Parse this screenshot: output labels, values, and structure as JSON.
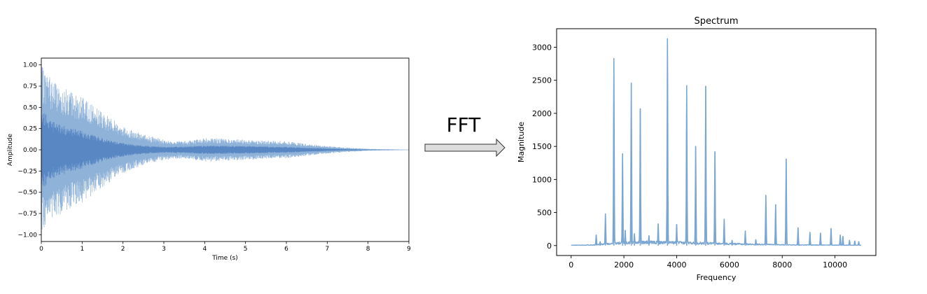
{
  "chart_data": [
    {
      "type": "line",
      "title": "",
      "xlabel": "Time (s)",
      "ylabel": "Amplitude",
      "xlim": [
        0,
        9
      ],
      "ylim": [
        -1.08,
        1.08
      ],
      "xticks": [
        0,
        1,
        2,
        3,
        4,
        5,
        6,
        7,
        8,
        9
      ],
      "yticks": [
        1.0,
        0.75,
        0.5,
        0.25,
        0.0,
        -0.25,
        -0.5,
        -0.75,
        -1.0
      ],
      "ytick_labels": [
        "1.00",
        "0.75",
        "0.50",
        "0.25",
        "0.00",
        "−0.25",
        "−0.50",
        "−0.75",
        "−1.00"
      ],
      "series": [
        {
          "style": "waveform",
          "color": "#5b8fc8",
          "envelope": {
            "t": [
              0,
              0.1,
              0.3,
              0.6,
              1.0,
              1.5,
              2.0,
              2.5,
              3.0,
              3.5,
              4.0,
              4.5,
              5.0,
              5.5,
              6.0,
              6.5,
              7.0,
              7.5,
              8.0,
              8.5,
              9.0
            ],
            "peak": [
              0.98,
              0.95,
              0.82,
              0.72,
              0.62,
              0.45,
              0.28,
              0.18,
              0.12,
              0.1,
              0.14,
              0.13,
              0.12,
              0.11,
              0.1,
              0.07,
              0.045,
              0.025,
              0.012,
              0.006,
              0.002
            ],
            "core": [
              0.5,
              0.45,
              0.33,
              0.28,
              0.22,
              0.14,
              0.08,
              0.05,
              0.035,
              0.04,
              0.05,
              0.05,
              0.045,
              0.04,
              0.035,
              0.025,
              0.015,
              0.008,
              0.004,
              0.002,
              0.001
            ]
          }
        }
      ]
    },
    {
      "type": "line",
      "title": "Spectrum",
      "xlabel": "Frequency",
      "ylabel": "Magnitude",
      "xlim": [
        -550,
        11550
      ],
      "ylim": [
        -150,
        3280
      ],
      "xticks": [
        0,
        2000,
        4000,
        6000,
        8000,
        10000
      ],
      "yticks": [
        0,
        500,
        1000,
        1500,
        2000,
        2500,
        3000
      ],
      "series": [
        {
          "color": "#7aa6d2",
          "baseline": {
            "x": [
              0,
              900,
              1500,
              2500,
              3500,
              4500,
              5500,
              6500,
              7500,
              8500,
              9500,
              11000
            ],
            "y": [
              5,
              10,
              30,
              50,
              45,
              40,
              30,
              22,
              15,
              10,
              8,
              5
            ]
          },
          "peaks": [
            {
              "x": 950,
              "y": 160
            },
            {
              "x": 1100,
              "y": 60
            },
            {
              "x": 1300,
              "y": 480
            },
            {
              "x": 1620,
              "y": 2830
            },
            {
              "x": 1950,
              "y": 1390
            },
            {
              "x": 2050,
              "y": 230
            },
            {
              "x": 2280,
              "y": 2460
            },
            {
              "x": 2400,
              "y": 180
            },
            {
              "x": 2620,
              "y": 2070
            },
            {
              "x": 2950,
              "y": 150
            },
            {
              "x": 3300,
              "y": 330
            },
            {
              "x": 3650,
              "y": 3130
            },
            {
              "x": 4000,
              "y": 320
            },
            {
              "x": 4380,
              "y": 2420
            },
            {
              "x": 4720,
              "y": 1500
            },
            {
              "x": 5100,
              "y": 2410
            },
            {
              "x": 5450,
              "y": 1420
            },
            {
              "x": 5800,
              "y": 400
            },
            {
              "x": 6100,
              "y": 80
            },
            {
              "x": 6600,
              "y": 220
            },
            {
              "x": 7000,
              "y": 90
            },
            {
              "x": 7380,
              "y": 760
            },
            {
              "x": 7750,
              "y": 620
            },
            {
              "x": 8150,
              "y": 1310
            },
            {
              "x": 8600,
              "y": 270
            },
            {
              "x": 9050,
              "y": 200
            },
            {
              "x": 9450,
              "y": 190
            },
            {
              "x": 9850,
              "y": 260
            },
            {
              "x": 10200,
              "y": 160
            },
            {
              "x": 10300,
              "y": 140
            },
            {
              "x": 10550,
              "y": 80
            },
            {
              "x": 10750,
              "y": 70
            },
            {
              "x": 10900,
              "y": 60
            }
          ]
        }
      ]
    }
  ],
  "arrow": {
    "label": "FFT"
  }
}
